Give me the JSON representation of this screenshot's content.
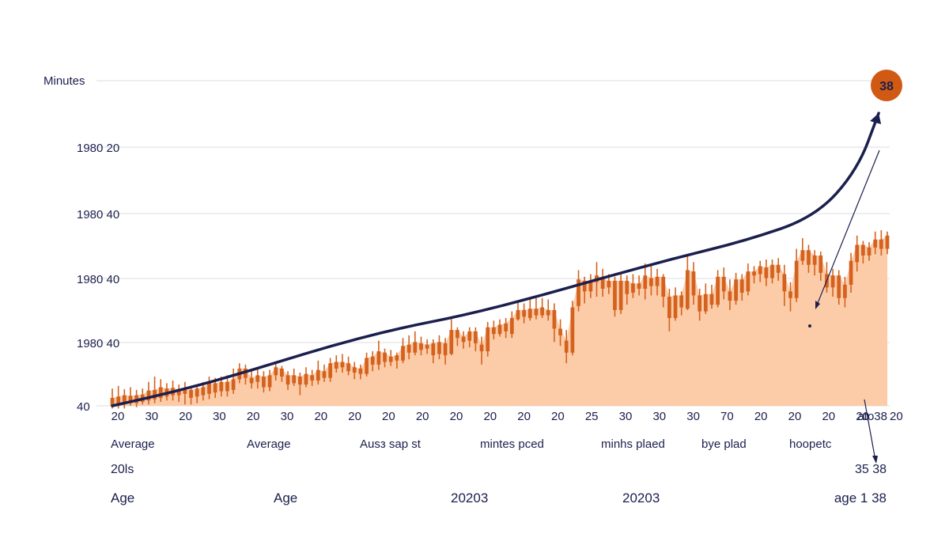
{
  "chart_data": {
    "type": "candlestick",
    "ylabel": "Minutes",
    "y_tick_labels": [
      "1980 20",
      "1980 40",
      "1980 40",
      "1980 40",
      "40"
    ],
    "x_tick_labels": [
      "20",
      "30",
      "20",
      "30",
      "20",
      "30",
      "20",
      "20",
      "20",
      "20",
      "20",
      "20",
      "20",
      "20",
      "25",
      "30",
      "30",
      "30",
      "70",
      "20",
      "20",
      "20",
      "20",
      "20",
      "ato38"
    ],
    "bottom_labels_row1": [
      "Average",
      "Average",
      "Ausз sap st",
      "mintes pced",
      "minhs plaed",
      "bye plad",
      "hoopetc"
    ],
    "bottom_labels_row2": [
      "20ls",
      "35 38"
    ],
    "bottom_labels_row3": [
      "Age",
      "Age",
      "20203",
      "20203",
      "age 1 38"
    ],
    "badge": "38",
    "colors": {
      "candle": "#d4621e",
      "area": "#fcc9a4",
      "trend": "#1b1f4d",
      "badge": "#d05a14",
      "grid": "#dddddd"
    },
    "trend_points": [
      [
        0,
        0
      ],
      [
        10,
        2.4
      ],
      [
        20,
        5.4
      ],
      [
        30,
        8.7
      ],
      [
        40,
        11.5
      ],
      [
        50,
        13.6
      ],
      [
        60,
        16.3
      ],
      [
        70,
        19.3
      ],
      [
        80,
        22.2
      ],
      [
        90,
        24.8
      ],
      [
        100,
        28.4
      ],
      [
        106,
        35.5
      ],
      [
        109,
        44
      ]
    ],
    "candles": [
      {
        "o": 1.2,
        "c": 0.0,
        "h": 2.6,
        "l": -0.4
      },
      {
        "o": 0.2,
        "c": 1.4,
        "h": 3.0,
        "l": -0.4
      },
      {
        "o": 1.6,
        "c": 0.3,
        "h": 2.5,
        "l": -0.4
      },
      {
        "o": 0.4,
        "c": 1.5,
        "h": 2.8,
        "l": 0.0
      },
      {
        "o": 1.6,
        "c": 0.4,
        "h": 2.4,
        "l": -0.2
      },
      {
        "o": 0.6,
        "c": 1.7,
        "h": 2.6,
        "l": 0.2
      },
      {
        "o": 0.8,
        "c": 2.3,
        "h": 3.6,
        "l": 0.2
      },
      {
        "o": 2.4,
        "c": 1.0,
        "h": 4.4,
        "l": 0.4
      },
      {
        "o": 1.2,
        "c": 2.8,
        "h": 4.0,
        "l": 0.6
      },
      {
        "o": 2.6,
        "c": 1.4,
        "h": 3.4,
        "l": 0.8
      },
      {
        "o": 1.6,
        "c": 2.7,
        "h": 3.8,
        "l": 0.8
      },
      {
        "o": 2.5,
        "c": 1.6,
        "h": 3.2,
        "l": 0.6
      },
      {
        "o": 1.8,
        "c": 2.4,
        "h": 3.6,
        "l": 0.2
      },
      {
        "o": 2.4,
        "c": 1.2,
        "h": 3.0,
        "l": 0.2
      },
      {
        "o": 1.4,
        "c": 2.6,
        "h": 3.2,
        "l": 0.4
      },
      {
        "o": 2.8,
        "c": 1.6,
        "h": 3.6,
        "l": 0.8
      },
      {
        "o": 1.8,
        "c": 3.4,
        "h": 4.4,
        "l": 1.0
      },
      {
        "o": 3.4,
        "c": 2.0,
        "h": 4.2,
        "l": 1.2
      },
      {
        "o": 2.2,
        "c": 3.6,
        "h": 4.4,
        "l": 1.4
      },
      {
        "o": 3.6,
        "c": 2.2,
        "h": 4.6,
        "l": 1.4
      },
      {
        "o": 2.4,
        "c": 4.0,
        "h": 5.6,
        "l": 1.8
      },
      {
        "o": 4.0,
        "c": 5.6,
        "h": 6.4,
        "l": 3.4
      },
      {
        "o": 5.6,
        "c": 4.2,
        "h": 6.2,
        "l": 3.2
      },
      {
        "o": 4.2,
        "c": 3.4,
        "h": 5.2,
        "l": 2.6
      },
      {
        "o": 3.6,
        "c": 4.6,
        "h": 5.6,
        "l": 2.6
      },
      {
        "o": 4.4,
        "c": 2.8,
        "h": 5.2,
        "l": 2.0
      },
      {
        "o": 2.8,
        "c": 4.6,
        "h": 5.4,
        "l": 2.2
      },
      {
        "o": 4.6,
        "c": 5.8,
        "h": 6.4,
        "l": 3.8
      },
      {
        "o": 5.6,
        "c": 4.4,
        "h": 6.0,
        "l": 3.6
      },
      {
        "o": 4.6,
        "c": 3.2,
        "h": 5.2,
        "l": 2.4
      },
      {
        "o": 3.4,
        "c": 4.6,
        "h": 5.6,
        "l": 3.0
      },
      {
        "o": 4.4,
        "c": 3.2,
        "h": 5.0,
        "l": 1.6
      },
      {
        "o": 3.2,
        "c": 4.8,
        "h": 5.8,
        "l": 2.8
      },
      {
        "o": 4.6,
        "c": 3.8,
        "h": 5.4,
        "l": 3.0
      },
      {
        "o": 3.8,
        "c": 5.4,
        "h": 6.8,
        "l": 3.2
      },
      {
        "o": 5.2,
        "c": 4.2,
        "h": 6.2,
        "l": 3.6
      },
      {
        "o": 4.2,
        "c": 6.4,
        "h": 7.2,
        "l": 3.6
      },
      {
        "o": 6.6,
        "c": 5.6,
        "h": 7.6,
        "l": 5.0
      },
      {
        "o": 5.8,
        "c": 6.6,
        "h": 7.8,
        "l": 5.0
      },
      {
        "o": 6.4,
        "c": 5.2,
        "h": 7.4,
        "l": 4.6
      },
      {
        "o": 5.0,
        "c": 5.8,
        "h": 6.6,
        "l": 4.0
      },
      {
        "o": 5.6,
        "c": 4.8,
        "h": 6.2,
        "l": 4.0
      },
      {
        "o": 4.8,
        "c": 7.2,
        "h": 8.0,
        "l": 4.4
      },
      {
        "o": 7.4,
        "c": 6.2,
        "h": 8.2,
        "l": 5.2
      },
      {
        "o": 6.2,
        "c": 8.2,
        "h": 9.8,
        "l": 5.4
      },
      {
        "o": 8.0,
        "c": 6.6,
        "h": 8.6,
        "l": 5.8
      },
      {
        "o": 6.6,
        "c": 7.4,
        "h": 8.4,
        "l": 6.0
      },
      {
        "o": 7.6,
        "c": 6.8,
        "h": 8.0,
        "l": 5.6
      },
      {
        "o": 6.8,
        "c": 9.0,
        "h": 10.2,
        "l": 6.4
      },
      {
        "o": 9.2,
        "c": 8.0,
        "h": 10.6,
        "l": 7.0
      },
      {
        "o": 8.0,
        "c": 9.6,
        "h": 11.2,
        "l": 7.6
      },
      {
        "o": 9.4,
        "c": 8.4,
        "h": 10.4,
        "l": 7.6
      },
      {
        "o": 8.6,
        "c": 9.2,
        "h": 10.0,
        "l": 7.8
      },
      {
        "o": 9.4,
        "c": 7.6,
        "h": 10.0,
        "l": 6.4
      },
      {
        "o": 7.8,
        "c": 9.6,
        "h": 10.6,
        "l": 7.0
      },
      {
        "o": 9.4,
        "c": 7.6,
        "h": 10.2,
        "l": 6.2
      },
      {
        "o": 7.8,
        "c": 11.4,
        "h": 13.2,
        "l": 7.6
      },
      {
        "o": 11.4,
        "c": 10.2,
        "h": 11.8,
        "l": 9.0
      },
      {
        "o": 10.4,
        "c": 9.6,
        "h": 11.2,
        "l": 8.6
      },
      {
        "o": 9.8,
        "c": 11.2,
        "h": 11.8,
        "l": 8.8
      },
      {
        "o": 11.2,
        "c": 9.4,
        "h": 11.8,
        "l": 8.2
      },
      {
        "o": 9.2,
        "c": 8.2,
        "h": 10.4,
        "l": 6.2
      },
      {
        "o": 8.2,
        "c": 11.8,
        "h": 12.6,
        "l": 7.4
      },
      {
        "o": 11.8,
        "c": 10.8,
        "h": 12.8,
        "l": 10.0
      },
      {
        "o": 10.8,
        "c": 12.2,
        "h": 13.0,
        "l": 10.4
      },
      {
        "o": 12.4,
        "c": 11.2,
        "h": 13.2,
        "l": 10.2
      },
      {
        "o": 10.8,
        "c": 13.2,
        "h": 14.2,
        "l": 10.2
      },
      {
        "o": 13.0,
        "c": 14.4,
        "h": 15.8,
        "l": 12.8
      },
      {
        "o": 14.4,
        "c": 13.4,
        "h": 15.4,
        "l": 12.4
      },
      {
        "o": 13.2,
        "c": 14.6,
        "h": 16.2,
        "l": 12.8
      },
      {
        "o": 14.6,
        "c": 13.6,
        "h": 16.2,
        "l": 13.0
      },
      {
        "o": 13.6,
        "c": 14.8,
        "h": 16.2,
        "l": 13.2
      },
      {
        "o": 14.4,
        "c": 13.6,
        "h": 16.0,
        "l": 12.8
      },
      {
        "o": 14.4,
        "c": 11.6,
        "h": 15.4,
        "l": 9.6
      },
      {
        "o": 11.6,
        "c": 10.6,
        "h": 13.0,
        "l": 9.0
      },
      {
        "o": 9.8,
        "c": 8.0,
        "h": 11.4,
        "l": 6.4
      },
      {
        "o": 8.0,
        "c": 14.8,
        "h": 15.8,
        "l": 7.6
      },
      {
        "o": 15.0,
        "c": 19.0,
        "h": 20.4,
        "l": 14.2
      },
      {
        "o": 18.8,
        "c": 17.2,
        "h": 19.4,
        "l": 15.4
      },
      {
        "o": 17.2,
        "c": 18.6,
        "h": 19.8,
        "l": 16.2
      },
      {
        "o": 18.6,
        "c": 19.6,
        "h": 21.6,
        "l": 16.4
      },
      {
        "o": 19.2,
        "c": 17.6,
        "h": 20.6,
        "l": 16.4
      },
      {
        "o": 17.8,
        "c": 18.8,
        "h": 19.8,
        "l": 16.8
      },
      {
        "o": 18.8,
        "c": 14.4,
        "h": 19.4,
        "l": 13.4
      },
      {
        "o": 14.4,
        "c": 18.8,
        "h": 19.8,
        "l": 13.8
      },
      {
        "o": 18.8,
        "c": 16.8,
        "h": 19.6,
        "l": 15.2
      },
      {
        "o": 17.0,
        "c": 18.4,
        "h": 19.8,
        "l": 16.2
      },
      {
        "o": 18.4,
        "c": 17.6,
        "h": 19.6,
        "l": 16.6
      },
      {
        "o": 17.6,
        "c": 19.6,
        "h": 21.4,
        "l": 16.0
      },
      {
        "o": 19.2,
        "c": 18.0,
        "h": 21.2,
        "l": 16.6
      },
      {
        "o": 18.0,
        "c": 19.4,
        "h": 20.6,
        "l": 16.6
      },
      {
        "o": 19.4,
        "c": 16.4,
        "h": 19.8,
        "l": 14.8
      },
      {
        "o": 16.4,
        "c": 13.2,
        "h": 17.6,
        "l": 11.2
      },
      {
        "o": 13.2,
        "c": 16.6,
        "h": 17.8,
        "l": 12.8
      },
      {
        "o": 16.6,
        "c": 14.8,
        "h": 17.2,
        "l": 13.6
      },
      {
        "o": 14.6,
        "c": 20.4,
        "h": 22.8,
        "l": 14.4
      },
      {
        "o": 20.2,
        "c": 16.6,
        "h": 21.6,
        "l": 15.2
      },
      {
        "o": 16.6,
        "c": 14.2,
        "h": 17.6,
        "l": 12.8
      },
      {
        "o": 14.2,
        "c": 16.8,
        "h": 18.4,
        "l": 13.8
      },
      {
        "o": 16.8,
        "c": 15.2,
        "h": 18.2,
        "l": 14.6
      },
      {
        "o": 15.2,
        "c": 19.4,
        "h": 20.4,
        "l": 14.8
      },
      {
        "o": 19.4,
        "c": 17.2,
        "h": 20.8,
        "l": 16.0
      },
      {
        "o": 17.2,
        "c": 15.8,
        "h": 19.0,
        "l": 14.4
      },
      {
        "o": 15.8,
        "c": 19.0,
        "h": 20.0,
        "l": 15.2
      },
      {
        "o": 19.0,
        "c": 17.0,
        "h": 19.8,
        "l": 15.8
      },
      {
        "o": 17.2,
        "c": 20.2,
        "h": 21.4,
        "l": 16.6
      },
      {
        "o": 20.2,
        "c": 19.6,
        "h": 21.0,
        "l": 18.4
      },
      {
        "o": 19.8,
        "c": 21.0,
        "h": 21.8,
        "l": 18.6
      },
      {
        "o": 20.8,
        "c": 19.2,
        "h": 22.0,
        "l": 18.0
      },
      {
        "o": 19.2,
        "c": 21.2,
        "h": 22.0,
        "l": 18.4
      },
      {
        "o": 21.2,
        "c": 20.0,
        "h": 22.2,
        "l": 18.8
      },
      {
        "o": 19.8,
        "c": 17.2,
        "h": 21.2,
        "l": 15.0
      },
      {
        "o": 17.2,
        "c": 16.2,
        "h": 18.6,
        "l": 14.2
      },
      {
        "o": 16.2,
        "c": 21.8,
        "h": 23.6,
        "l": 15.6
      },
      {
        "o": 21.8,
        "c": 23.4,
        "h": 25.2,
        "l": 21.2
      },
      {
        "o": 23.4,
        "c": 21.2,
        "h": 24.2,
        "l": 20.0
      },
      {
        "o": 21.2,
        "c": 22.6,
        "h": 23.4,
        "l": 19.6
      },
      {
        "o": 22.6,
        "c": 20.0,
        "h": 23.2,
        "l": 18.8
      },
      {
        "o": 19.8,
        "c": 17.8,
        "h": 21.6,
        "l": 17.0
      },
      {
        "o": 17.8,
        "c": 19.6,
        "h": 20.6,
        "l": 16.4
      },
      {
        "o": 19.6,
        "c": 16.2,
        "h": 20.4,
        "l": 15.2
      },
      {
        "o": 16.2,
        "c": 18.2,
        "h": 19.4,
        "l": 14.8
      },
      {
        "o": 18.2,
        "c": 21.8,
        "h": 23.0,
        "l": 17.0
      },
      {
        "o": 21.6,
        "c": 24.2,
        "h": 25.6,
        "l": 20.2
      },
      {
        "o": 24.2,
        "c": 22.6,
        "h": 24.8,
        "l": 21.4
      },
      {
        "o": 22.6,
        "c": 23.8,
        "h": 24.6,
        "l": 21.8
      },
      {
        "o": 23.8,
        "c": 25.0,
        "h": 26.2,
        "l": 22.8
      },
      {
        "o": 25.0,
        "c": 23.6,
        "h": 26.4,
        "l": 22.6
      },
      {
        "o": 23.6,
        "c": 25.6,
        "h": 26.2,
        "l": 22.8
      }
    ]
  }
}
